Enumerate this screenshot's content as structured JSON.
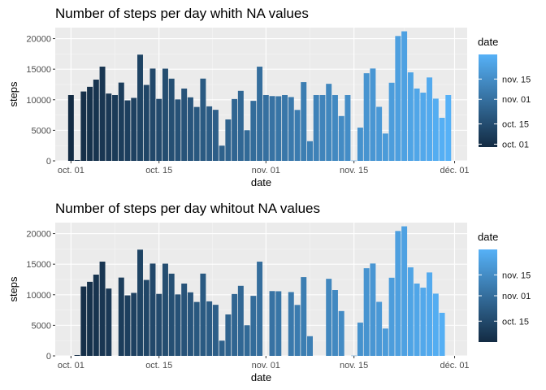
{
  "chart_data": [
    {
      "type": "bar",
      "title": "Number of steps per day whith NA values",
      "xlabel": "date",
      "ylabel": "steps",
      "ylim": [
        0,
        21800
      ],
      "yticks": [
        "0",
        "5000",
        "10000",
        "15000",
        "20000"
      ],
      "xticks": [
        "oct. 01",
        "oct. 15",
        "nov. 01",
        "nov. 15",
        "déc. 01"
      ],
      "grid": true,
      "legend": {
        "title": "date",
        "position": "right",
        "labels": [
          "oct. 01",
          "oct. 15",
          "nov. 01",
          "nov. 15"
        ],
        "color_low": "#132B43",
        "color_high": "#56B1F7"
      },
      "x_start": "2012-10-01",
      "values": [
        10766,
        126,
        11352,
        12116,
        13294,
        15420,
        11015,
        10766,
        12811,
        9900,
        10304,
        17382,
        12426,
        15098,
        10139,
        15084,
        13452,
        10056,
        11829,
        10395,
        8821,
        13460,
        8918,
        8355,
        2492,
        6778,
        10119,
        11458,
        5018,
        9819,
        15414,
        10766,
        10600,
        10571,
        10766,
        10439,
        8334,
        12883,
        3219,
        10766,
        10766,
        12608,
        10765,
        7336,
        10766,
        41,
        5441,
        14339,
        15110,
        8841,
        4472,
        12787,
        20427,
        21194,
        14478,
        11834,
        11162,
        13646,
        10183,
        7047,
        10766
      ]
    },
    {
      "type": "bar",
      "title": "Number of steps per day whitout NA values",
      "xlabel": "date",
      "ylabel": "steps",
      "ylim": [
        0,
        21800
      ],
      "yticks": [
        "0",
        "5000",
        "10000",
        "15000",
        "20000"
      ],
      "xticks": [
        "oct. 01",
        "oct. 15",
        "nov. 01",
        "nov. 15",
        "déc. 01"
      ],
      "grid": true,
      "legend": {
        "title": "date",
        "position": "right",
        "labels": [
          "oct. 15",
          "nov. 01",
          "nov. 15"
        ],
        "color_low": "#132B43",
        "color_high": "#56B1F7"
      },
      "x_start": "2012-10-01",
      "values": [
        null,
        126,
        11352,
        12116,
        13294,
        15420,
        11015,
        null,
        12811,
        9900,
        10304,
        17382,
        12426,
        15098,
        10139,
        15084,
        13452,
        10056,
        11829,
        10395,
        8821,
        13460,
        8918,
        8355,
        2492,
        6778,
        10119,
        11458,
        5018,
        9819,
        15414,
        null,
        10600,
        10571,
        null,
        10439,
        8334,
        12883,
        3219,
        null,
        null,
        12608,
        10765,
        7336,
        null,
        41,
        5441,
        14339,
        15110,
        8841,
        4472,
        12787,
        20427,
        21194,
        14478,
        11834,
        11162,
        13646,
        10183,
        7047,
        null
      ]
    }
  ]
}
